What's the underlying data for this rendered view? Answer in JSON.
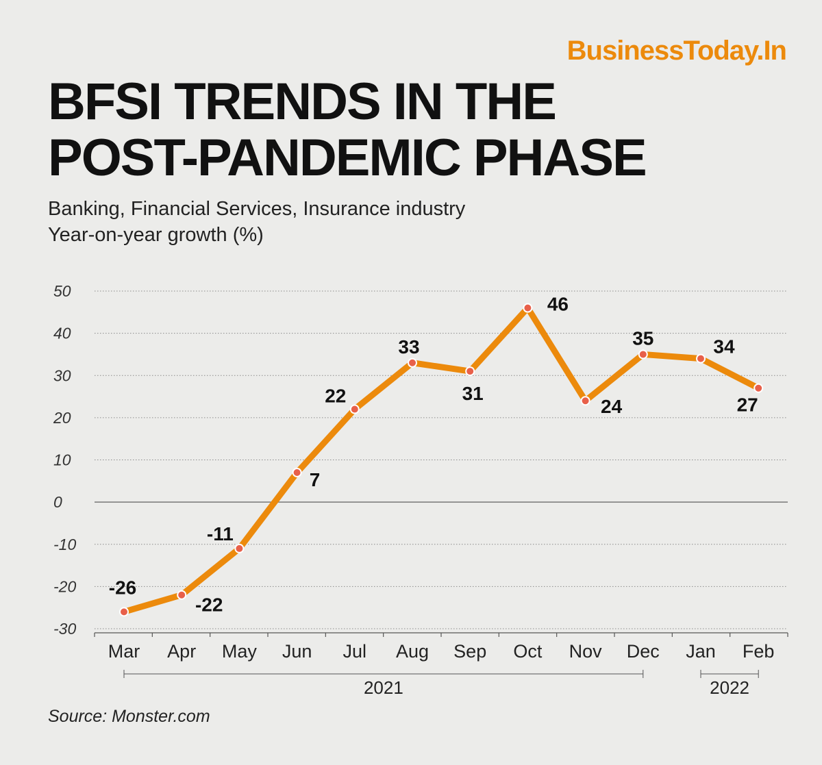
{
  "brand": "BusinessToday.In",
  "title_line1": "BFSI TRENDS IN THE",
  "title_line2": "POST-PANDEMIC PHASE",
  "subtitle_line1": "Banking, Financial Services, Insurance industry",
  "subtitle_line2": "Year-on-year growth (%)",
  "source": "Source: Monster.com",
  "colors": {
    "line": "#ec8a0c",
    "marker": "#e8604a",
    "background": "#ececea"
  },
  "chart_data": {
    "type": "line",
    "title": "BFSI TRENDS IN THE POST-PANDEMIC PHASE",
    "ylabel": "Year-on-year growth (%)",
    "categories": [
      "Mar",
      "Apr",
      "May",
      "Jun",
      "Jul",
      "Aug",
      "Sep",
      "Oct",
      "Nov",
      "Dec",
      "Jan",
      "Feb"
    ],
    "values": [
      -26,
      -22,
      -11,
      7,
      22,
      33,
      31,
      46,
      24,
      35,
      34,
      27
    ],
    "yticks": [
      50,
      40,
      30,
      20,
      10,
      0,
      -10,
      -20,
      -30
    ],
    "ylim": [
      -30,
      50
    ],
    "year_groups": [
      {
        "label": "2021",
        "from": "Mar",
        "to": "Dec"
      },
      {
        "label": "2022",
        "from": "Jan",
        "to": "Feb"
      }
    ],
    "grid": true,
    "legend": "none"
  }
}
